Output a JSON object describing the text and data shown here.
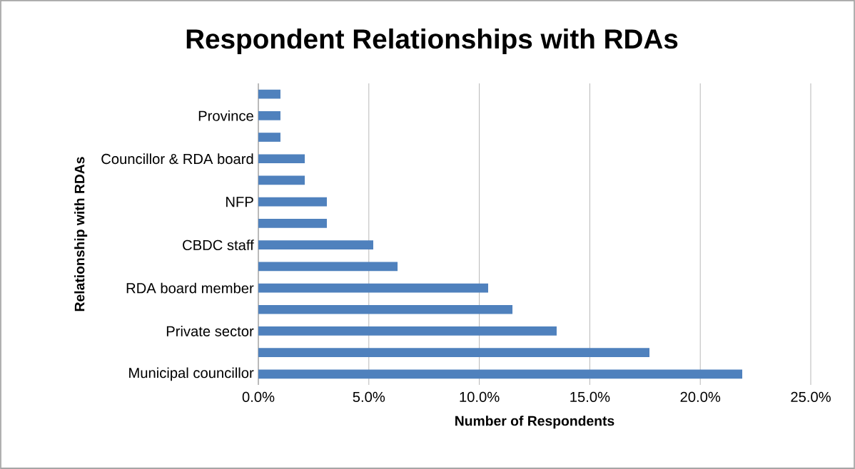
{
  "chart_data": {
    "type": "bar",
    "orientation": "horizontal",
    "title": "Respondent Relationships with RDAs",
    "xlabel": "Number of Respondents",
    "ylabel": "Relationship with RDAs",
    "categories": [
      null,
      "Province",
      null,
      "Councillor & RDA board",
      null,
      "NFP",
      null,
      "CBDC staff",
      null,
      "RDA board member",
      null,
      "Private sector",
      null,
      "Municipal councillor"
    ],
    "values": [
      1.0,
      1.0,
      1.0,
      2.1,
      2.1,
      3.1,
      3.1,
      5.2,
      6.3,
      10.4,
      11.5,
      13.5,
      17.7,
      21.9
    ],
    "color": "#4f81bd",
    "xlim": [
      0,
      25
    ],
    "xticks": [
      {
        "value": 0,
        "label": "0.0%"
      },
      {
        "value": 5,
        "label": "5.0%"
      },
      {
        "value": 10,
        "label": "10.0%"
      },
      {
        "value": 15,
        "label": "15.0%"
      },
      {
        "value": 20,
        "label": "20.0%"
      },
      {
        "value": 25,
        "label": "25.0%"
      }
    ],
    "grid": "x"
  }
}
